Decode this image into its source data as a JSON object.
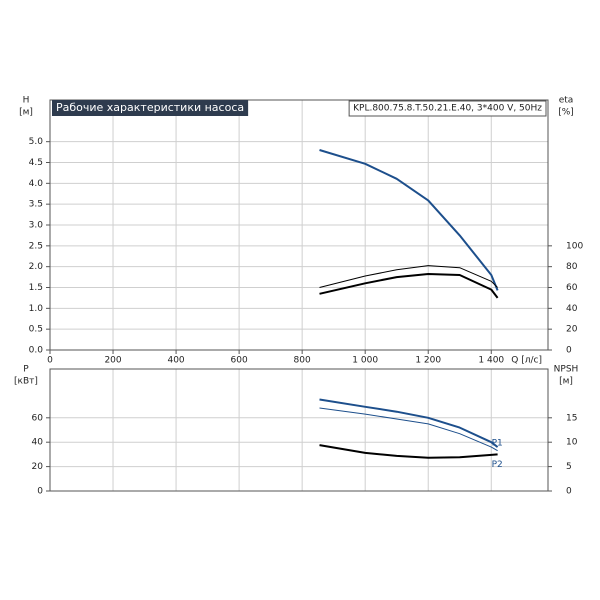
{
  "chart_data": [
    {
      "type": "line",
      "title": "Рабочие характеристики насоса",
      "subtitle": "KPL.800.75.8.T.50.21.E.40, 3*400 V, 50Hz",
      "ylabel": "H",
      "yunit": "[м]",
      "y2label": "eta",
      "y2unit": "[%]",
      "xlabel": "Q [л/с]",
      "x": [
        855,
        1000,
        1100,
        1200,
        1300,
        1400,
        1420
      ],
      "series": [
        {
          "color": "#1d4f8c",
          "values": [
            4.8,
            4.47,
            4.11,
            3.59,
            2.75,
            1.8,
            1.43
          ]
        },
        {
          "color": "#000000",
          "axis": "y2",
          "values": [
            60,
            71,
            77,
            81,
            79,
            66,
            60
          ]
        },
        {
          "color": "#000000",
          "axis": "y2",
          "values": [
            54,
            64,
            70,
            73,
            72,
            58,
            50
          ]
        }
      ],
      "xlim": [
        0,
        1580
      ],
      "xticks": [
        0,
        200,
        400,
        600,
        800,
        {
          "value": 1000,
          "label": "1 000"
        },
        {
          "value": 1200,
          "label": "1 200"
        },
        {
          "value": 1400,
          "label": "1 400"
        }
      ],
      "ylim": [
        0,
        6
      ],
      "yticks": [
        {
          "value": 0,
          "label": "0.0"
        },
        0.5,
        {
          "value": 1,
          "label": "1.0"
        },
        1.5,
        {
          "value": 2,
          "label": "2.0"
        },
        2.5,
        {
          "value": 3,
          "label": "3.0"
        },
        3.5,
        {
          "value": 4,
          "label": "4.0"
        },
        4.5,
        {
          "value": 5,
          "label": "5.0"
        }
      ],
      "y2lim": [
        0,
        240
      ],
      "y2ticks": [
        0,
        20,
        40,
        60,
        80,
        100
      ],
      "grid": true
    },
    {
      "type": "line",
      "ylabel": "P",
      "yunit": "[кВт]",
      "y2label": "NPSH",
      "y2unit": "[м]",
      "x": [
        855,
        1000,
        1100,
        1200,
        1300,
        1400,
        1420
      ],
      "series": [
        {
          "name": "P1",
          "color": "#1d4f8c",
          "values": [
            75,
            69,
            65,
            60,
            52,
            40,
            36
          ]
        },
        {
          "name": "P2",
          "color": "#1d4f8c",
          "values": [
            68,
            63,
            59,
            55,
            47,
            36,
            33
          ]
        },
        {
          "color": "#000000",
          "axis": "y2",
          "values": [
            9.4,
            7.8,
            7.2,
            6.8,
            6.9,
            7.4,
            7.5
          ]
        }
      ],
      "xlim": [
        0,
        1580
      ],
      "xticks": [
        0,
        200,
        400,
        600,
        800,
        1000,
        1200,
        1400
      ],
      "ylim": [
        0,
        100
      ],
      "yticks": [
        0,
        20,
        40,
        60
      ],
      "y2lim": [
        0,
        25
      ],
      "y2ticks": [
        0,
        5,
        10,
        15
      ],
      "grid": true
    }
  ]
}
